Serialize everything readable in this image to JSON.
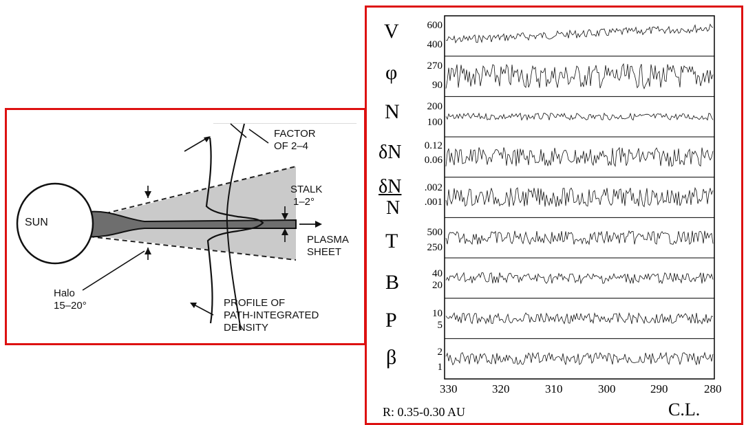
{
  "left_diagram": {
    "sun_label": "SUN",
    "factor_label_1": "FACTOR",
    "factor_label_2": "OF 2–4",
    "stalk_label_1": "STALK",
    "stalk_label_2": "1–2°",
    "plasma_label_1": "PLASMA",
    "plasma_label_2": "SHEET",
    "halo_label_1": "Halo",
    "halo_label_2": "15–20°",
    "profile_label_1": "PROFILE OF",
    "profile_label_2": "PATH-INTEGRATED",
    "profile_label_3": "DENSITY"
  },
  "right_plot": {
    "panels": [
      {
        "label": "V",
        "ticks": [
          "600",
          "400"
        ]
      },
      {
        "label": "φ",
        "ticks": [
          "270",
          "90"
        ]
      },
      {
        "label": "N",
        "ticks": [
          "200",
          "100"
        ]
      },
      {
        "label": "δN",
        "ticks": [
          "0.12",
          "0.06"
        ]
      },
      {
        "label_top": "δN",
        "label_bottom": "N",
        "ticks": [
          ".002",
          ".001"
        ]
      },
      {
        "label": "T",
        "ticks": [
          "500",
          "250"
        ]
      },
      {
        "label": "B",
        "ticks": [
          "40",
          "20"
        ]
      },
      {
        "label": "P",
        "ticks": [
          "10",
          "5"
        ]
      },
      {
        "label": "β",
        "ticks": [
          "2",
          "1"
        ]
      }
    ],
    "x_ticks": [
      "330",
      "320",
      "310",
      "300",
      "290",
      "280"
    ],
    "range_label": "R: 0.35-0.30 AU",
    "axis_label": "C.L."
  },
  "colors": {
    "frame": "#dd1111",
    "ink": "#111111",
    "halo_fill": "#c9c9c9",
    "stalk_fill": "#6f6f6f"
  }
}
